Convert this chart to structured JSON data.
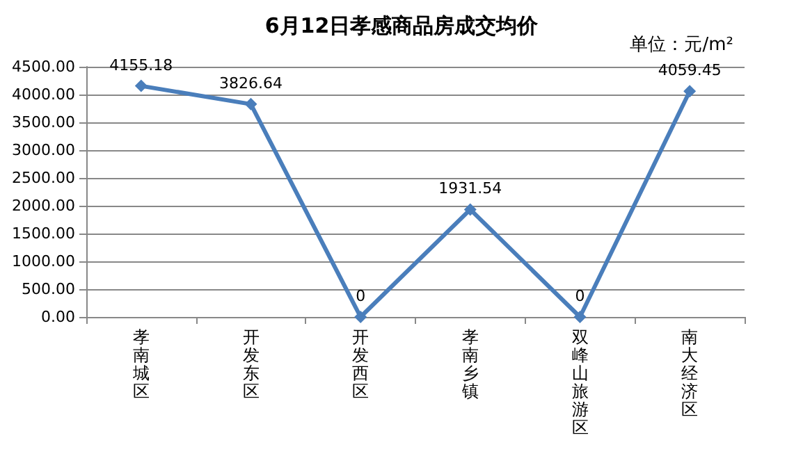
{
  "chart_data": {
    "type": "line",
    "title": "6月12日孝感商品房成交均价",
    "annotations": [
      "单位：元/m²"
    ],
    "categories": [
      "孝南城区",
      "开发东区",
      "开发西区",
      "孝南乡镇",
      "双峰山旅游区",
      "南大经济区"
    ],
    "series": [
      {
        "color": "#4a7ebb",
        "values": [
          4155.18,
          3826.64,
          0,
          1931.54,
          0,
          4059.45
        ]
      }
    ],
    "ylim": [
      0,
      4500
    ],
    "yticks": [
      {
        "value": 0,
        "label": "0.00"
      },
      {
        "value": 500,
        "label": "500.00"
      },
      {
        "value": 1000,
        "label": "1000.00"
      },
      {
        "value": 1500,
        "label": "1500.00"
      },
      {
        "value": 2000,
        "label": "2000.00"
      },
      {
        "value": 2500,
        "label": "2500.00"
      },
      {
        "value": 3000,
        "label": "3000.00"
      },
      {
        "value": 3500,
        "label": "3500.00"
      },
      {
        "value": 4000,
        "label": "4000.00"
      },
      {
        "value": 4500,
        "label": "4500.00"
      }
    ],
    "grid": "y",
    "marker": "diamond",
    "line_style": "solid",
    "data_labels": true
  }
}
